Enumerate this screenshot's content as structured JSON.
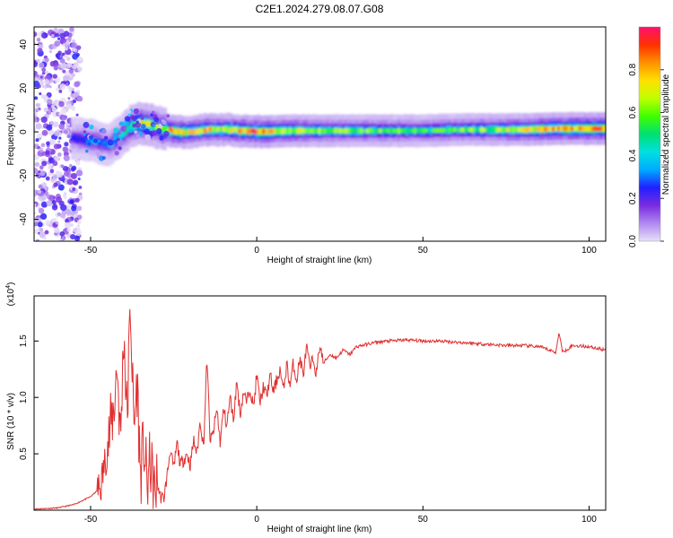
{
  "chart_data": [
    {
      "type": "heatmap",
      "title": "C2E1.2024.279.08.07.G08",
      "xlabel": "Height of straight line (km)",
      "ylabel": "Frequency (Hz)",
      "xlim": [
        -67,
        105
      ],
      "ylim": [
        -50,
        48
      ],
      "xticks": [
        -50,
        0,
        50,
        100
      ],
      "yticks": [
        -40,
        -20,
        0,
        20,
        40
      ],
      "colorbar": {
        "label": "Normalized spectral amplitude",
        "range": [
          0,
          1
        ],
        "ticks": [
          0.0,
          0.2,
          0.4,
          0.6,
          0.8
        ],
        "tick_labels": [
          "0.0",
          "0.2",
          "0.4",
          "0.6",
          "0.8"
        ],
        "colormap": [
          "#e8e0f8",
          "#b088f0",
          "#7a2ce0",
          "#2020ff",
          "#00aaff",
          "#00e0e0",
          "#00e070",
          "#40ff00",
          "#c0ff00",
          "#ffe000",
          "#ff9000",
          "#ff3000",
          "#ff1070"
        ]
      },
      "ridge": {
        "x": [
          -55,
          -50,
          -45,
          -42,
          -40,
          -38,
          -35,
          -32,
          -30,
          -25,
          -20,
          -15,
          -10,
          -5,
          0,
          10,
          20,
          30,
          40,
          50,
          60,
          70,
          80,
          90,
          105
        ],
        "y": [
          -3,
          -4,
          -6,
          -3,
          0,
          3,
          4,
          3,
          2,
          0,
          0,
          1,
          1,
          0.5,
          0,
          0.5,
          0.5,
          0.5,
          0.5,
          0.5,
          1,
          1,
          1,
          1.5,
          1.5
        ],
        "amplitude": [
          0.25,
          0.3,
          0.3,
          0.35,
          0.45,
          0.55,
          0.7,
          0.65,
          0.6,
          0.85,
          0.7,
          0.75,
          0.7,
          0.75,
          0.85,
          0.7,
          0.6,
          0.55,
          0.55,
          0.5,
          0.55,
          0.6,
          0.7,
          0.8,
          0.9
        ]
      }
    },
    {
      "type": "line",
      "xlabel": "Height of straight line (km)",
      "ylabel": "SNR (10 * v/v)",
      "y_multiplier": "(x10^4)",
      "xlim": [
        -67,
        105
      ],
      "ylim": [
        0,
        1.9
      ],
      "xticks": [
        -50,
        0,
        50,
        100
      ],
      "yticks": [
        0.5,
        1.0,
        1.5
      ],
      "ytick_labels": [
        "0.5",
        "1.0",
        "1.5"
      ],
      "color": "#e03030",
      "series": [
        {
          "x": [
            -67,
            -60,
            -55,
            -50,
            -47,
            -45,
            -43,
            -42,
            -41,
            -40,
            -39,
            -38,
            -37,
            -36,
            -35,
            -34,
            -33,
            -32,
            -31,
            -30,
            -29,
            -28,
            -27,
            -26,
            -25,
            -24,
            -23,
            -22,
            -21,
            -20,
            -19,
            -18,
            -17,
            -16,
            -15,
            -14,
            -13,
            -12,
            -11,
            -10,
            -9,
            -8,
            -7,
            -6,
            -5,
            -4,
            -3,
            -2,
            -1,
            0,
            1,
            2,
            3,
            4,
            5,
            6,
            7,
            8,
            9,
            10,
            11,
            12,
            13,
            14,
            15,
            16,
            17,
            18,
            19,
            20,
            22,
            24,
            26,
            28,
            30,
            33,
            36,
            40,
            45,
            50,
            55,
            60,
            65,
            70,
            75,
            80,
            85,
            88,
            90,
            91,
            92,
            95,
            100,
            105
          ],
          "y": [
            0.01,
            0.02,
            0.05,
            0.12,
            0.2,
            0.55,
            0.9,
            1.3,
            0.6,
            1.6,
            0.8,
            1.85,
            0.7,
            1.15,
            0.3,
            0.6,
            0.2,
            0.45,
            0.15,
            0.25,
            0.12,
            0.1,
            0.3,
            0.55,
            0.35,
            0.6,
            0.4,
            0.45,
            0.5,
            0.4,
            0.62,
            0.5,
            0.8,
            0.55,
            1.35,
            0.6,
            0.7,
            0.9,
            0.6,
            0.9,
            0.75,
            1.0,
            0.8,
            1.15,
            0.85,
            1.05,
            0.95,
            1.1,
            0.9,
            1.2,
            0.95,
            1.1,
            1.0,
            1.2,
            1.05,
            1.15,
            1.25,
            1.05,
            1.3,
            1.1,
            1.3,
            1.15,
            1.35,
            1.2,
            1.45,
            1.25,
            1.35,
            1.2,
            1.48,
            1.3,
            1.38,
            1.35,
            1.42,
            1.38,
            1.45,
            1.47,
            1.49,
            1.5,
            1.51,
            1.5,
            1.5,
            1.49,
            1.48,
            1.47,
            1.46,
            1.46,
            1.45,
            1.42,
            1.4,
            1.58,
            1.4,
            1.46,
            1.45,
            1.42
          ]
        }
      ]
    }
  ]
}
